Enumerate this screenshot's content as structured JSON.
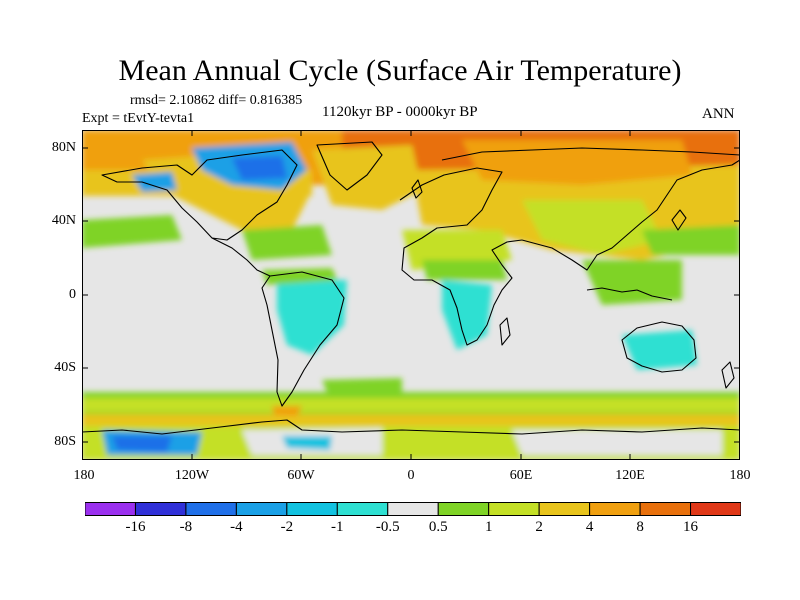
{
  "title": "Mean Annual Cycle (Surface Air Temperature)",
  "stats": "rmsd= 2.10862 diff= 0.816385",
  "experiment": "Expt = tEvtY-tevta1",
  "period": "1120kyr BP - 0000kyr BP",
  "season": "ANN",
  "map": {
    "lat_ticks": [
      "80N",
      "40N",
      "0",
      "40S",
      "80S"
    ],
    "lon_ticks": [
      "180",
      "120W",
      "60W",
      "0",
      "60E",
      "120E",
      "180"
    ]
  },
  "colorbar": {
    "colors": [
      "#9b30ef",
      "#3030d8",
      "#1f6fe8",
      "#1aa0e6",
      "#12c2e0",
      "#2ee0d2",
      "#e6e6e6",
      "#7fd326",
      "#c4e026",
      "#e8c41c",
      "#f0a010",
      "#e8700c",
      "#e03818"
    ],
    "labels": [
      "-16",
      "-8",
      "-4",
      "-2",
      "-1",
      "-0.5",
      "0.5",
      "1",
      "2",
      "4",
      "8",
      "16"
    ]
  }
}
